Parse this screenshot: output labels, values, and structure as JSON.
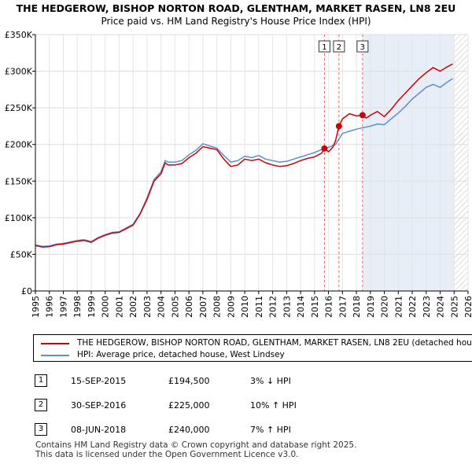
{
  "chart_data": {
    "type": "line",
    "title": "THE HEDGEROW, BISHOP NORTON ROAD, GLENTHAM, MARKET RASEN, LN8 2EU",
    "subtitle": "Price paid vs. HM Land Registry's House Price Index (HPI)",
    "xlabel": "",
    "ylabel": "",
    "xlim": [
      1995,
      2026
    ],
    "ylim": [
      0,
      350000
    ],
    "x_ticks": [
      1995,
      1996,
      1997,
      1998,
      1999,
      2000,
      2001,
      2002,
      2003,
      2004,
      2005,
      2006,
      2007,
      2008,
      2009,
      2010,
      2011,
      2012,
      2013,
      2014,
      2015,
      2016,
      2017,
      2018,
      2019,
      2020,
      2021,
      2022,
      2023,
      2024,
      2025,
      2026
    ],
    "x_tick_labels": [
      "1995",
      "1996",
      "1997",
      "1998",
      "1999",
      "2000",
      "2001",
      "2002",
      "2003",
      "2004",
      "2005",
      "2006",
      "2007",
      "2008",
      "2009",
      "2010",
      "2011",
      "2012",
      "2013",
      "2014",
      "2015",
      "2016",
      "2017",
      "2018",
      "2019",
      "2020",
      "2021",
      "2022",
      "2023",
      "2024",
      "2025",
      "2026"
    ],
    "y_ticks": [
      0,
      50000,
      100000,
      150000,
      200000,
      250000,
      300000,
      350000
    ],
    "y_tick_labels": [
      "£0",
      "£50K",
      "£100K",
      "£150K",
      "£200K",
      "£250K",
      "£300K",
      "£350K"
    ],
    "grid": true,
    "shaded_region": {
      "from": 2018.44,
      "to": 2025.0,
      "color": "#e8eef8"
    },
    "hatched_region": {
      "from": 2025.0,
      "to": 2026.0
    },
    "series": [
      {
        "name": "THE HEDGEROW, BISHOP NORTON ROAD, GLENTHAM, MARKET RASEN, LN8 2EU (detached house)",
        "color": "#cc0000",
        "x": [
          1995.0,
          1995.5,
          1996.0,
          1996.5,
          1997.0,
          1997.5,
          1998.0,
          1998.5,
          1999.0,
          1999.5,
          2000.0,
          2000.5,
          2001.0,
          2001.5,
          2002.0,
          2002.5,
          2003.0,
          2003.3,
          2003.5,
          2004.0,
          2004.3,
          2004.5,
          2005.0,
          2005.5,
          2006.0,
          2006.5,
          2007.0,
          2007.5,
          2008.0,
          2008.5,
          2009.0,
          2009.5,
          2010.0,
          2010.5,
          2011.0,
          2011.5,
          2012.0,
          2012.5,
          2013.0,
          2013.5,
          2014.0,
          2014.5,
          2015.0,
          2015.5,
          2015.71,
          2016.0,
          2016.3,
          2016.5,
          2016.75,
          2017.0,
          2017.5,
          2018.0,
          2018.44,
          2018.7,
          2019.0,
          2019.5,
          2020.0,
          2020.5,
          2021.0,
          2021.5,
          2022.0,
          2022.5,
          2023.0,
          2023.5,
          2024.0,
          2024.5,
          2024.9
        ],
        "values": [
          62000,
          60000,
          60500,
          63000,
          64000,
          66000,
          68000,
          69000,
          66500,
          72000,
          76000,
          79000,
          80000,
          85000,
          90000,
          105000,
          125000,
          140000,
          150000,
          160000,
          175000,
          172000,
          172000,
          174000,
          182000,
          188000,
          197000,
          195000,
          193000,
          180000,
          170000,
          172000,
          180000,
          178000,
          180000,
          175000,
          172000,
          170000,
          171000,
          174000,
          178000,
          181000,
          183000,
          188000,
          194500,
          190000,
          196000,
          205000,
          225000,
          235000,
          242000,
          239000,
          240000,
          236000,
          240000,
          245000,
          238000,
          248000,
          260000,
          270000,
          280000,
          290000,
          298000,
          305000,
          300000,
          306000,
          310000
        ]
      },
      {
        "name": "HPI: Average price, detached house, West Lindsey",
        "color": "#5b8fd0",
        "x": [
          1995.0,
          1995.5,
          1996.0,
          1996.5,
          1997.0,
          1997.5,
          1998.0,
          1998.5,
          1999.0,
          1999.5,
          2000.0,
          2000.5,
          2001.0,
          2001.5,
          2002.0,
          2002.5,
          2003.0,
          2003.3,
          2003.5,
          2004.0,
          2004.3,
          2004.5,
          2005.0,
          2005.5,
          2006.0,
          2006.5,
          2007.0,
          2007.5,
          2008.0,
          2008.5,
          2009.0,
          2009.5,
          2010.0,
          2010.5,
          2011.0,
          2011.5,
          2012.0,
          2012.5,
          2013.0,
          2013.5,
          2014.0,
          2014.5,
          2015.0,
          2015.5,
          2016.0,
          2016.5,
          2017.0,
          2017.5,
          2018.0,
          2018.5,
          2019.0,
          2019.5,
          2020.0,
          2020.5,
          2021.0,
          2021.5,
          2022.0,
          2022.5,
          2023.0,
          2023.5,
          2024.0,
          2024.5,
          2024.9
        ],
        "values": [
          63000,
          61000,
          61500,
          64000,
          65000,
          67000,
          69000,
          70000,
          67500,
          73000,
          77000,
          80000,
          81000,
          86000,
          91000,
          106000,
          127000,
          142000,
          152000,
          163000,
          178000,
          176000,
          176000,
          178000,
          186000,
          192000,
          201000,
          198000,
          195000,
          185000,
          176000,
          178000,
          184000,
          182000,
          185000,
          180000,
          178000,
          176000,
          177000,
          180000,
          183000,
          186000,
          189000,
          193000,
          196000,
          200000,
          215000,
          218000,
          221000,
          223000,
          225000,
          228000,
          227000,
          235000,
          243000,
          252000,
          262000,
          270000,
          278000,
          282000,
          278000,
          285000,
          290000
        ]
      }
    ],
    "markers": [
      {
        "label": "1",
        "x": 2015.71,
        "y": 194500
      },
      {
        "label": "2",
        "x": 2016.75,
        "y": 225000
      },
      {
        "label": "3",
        "x": 2018.44,
        "y": 240000
      }
    ]
  },
  "legend": {
    "items": [
      {
        "label": "THE HEDGEROW, BISHOP NORTON ROAD, GLENTHAM, MARKET RASEN, LN8 2EU (detached house)",
        "color": "#cc0000"
      },
      {
        "label": "HPI: Average price, detached house, West Lindsey",
        "color": "#5b8fd0"
      }
    ]
  },
  "transactions": [
    {
      "num": "1",
      "date": "15-SEP-2015",
      "price": "£194,500",
      "diff": "3% ↓ HPI"
    },
    {
      "num": "2",
      "date": "30-SEP-2016",
      "price": "£225,000",
      "diff": "10% ↑ HPI"
    },
    {
      "num": "3",
      "date": "08-JUN-2018",
      "price": "£240,000",
      "diff": "7% ↑ HPI"
    }
  ],
  "footer": {
    "line1": "Contains HM Land Registry data © Crown copyright and database right 2025.",
    "line2": "This data is licensed under the Open Government Licence v3.0."
  }
}
